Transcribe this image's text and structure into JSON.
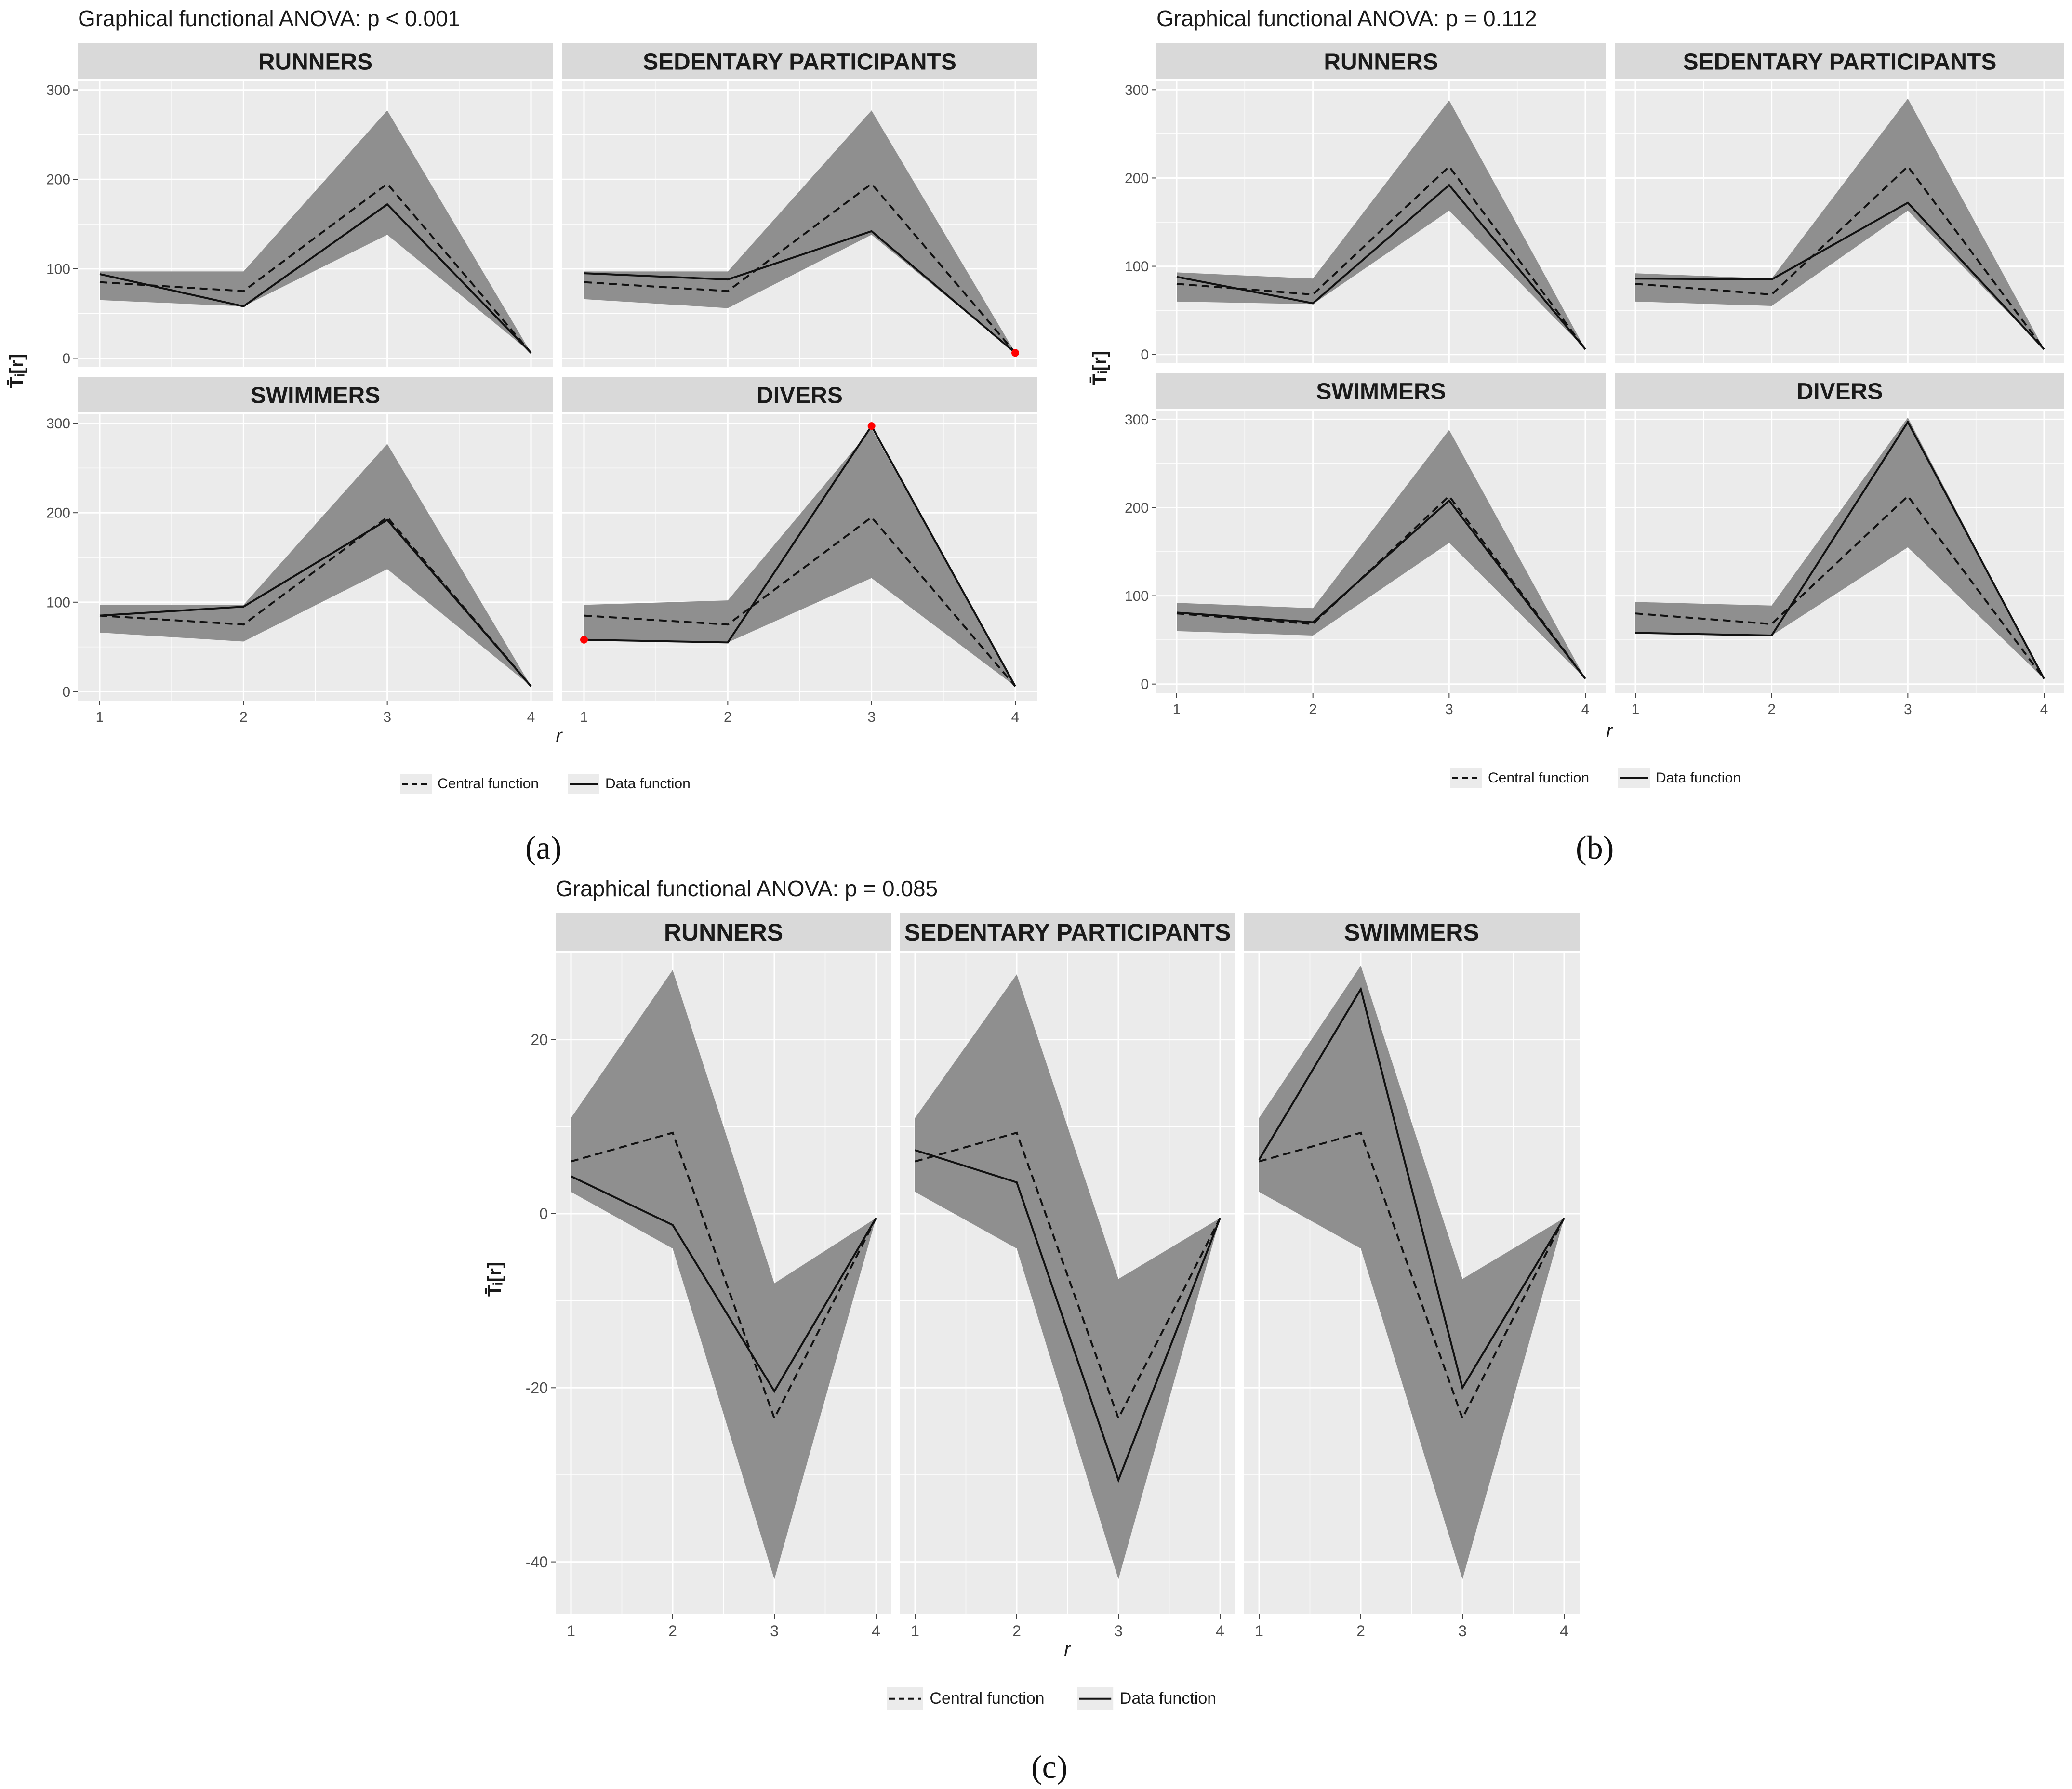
{
  "figures": [
    {
      "id": "a",
      "label": "(a)",
      "title": "Graphical functional ANOVA: p < 0.001",
      "ylabel": "T̄ᵢ[r]",
      "xlabel": "r",
      "legend": {
        "central": "Central function",
        "data": "Data function"
      }
    },
    {
      "id": "b",
      "label": "(b)",
      "title": "Graphical functional ANOVA: p = 0.112",
      "ylabel": "T̄ᵢ[r]",
      "xlabel": "r",
      "legend": {
        "central": "Central function",
        "data": "Data function"
      }
    },
    {
      "id": "c",
      "label": "(c)",
      "title": "Graphical functional ANOVA: p = 0.085",
      "ylabel": "T̄ᵢ[r]",
      "xlabel": "r",
      "legend": {
        "central": "Central function",
        "data": "Data function"
      }
    }
  ],
  "chart_data": [
    {
      "figure": "a",
      "type": "line",
      "title": "Graphical functional ANOVA: p < 0.001",
      "xlabel": "r",
      "ylabel": "T̄ᵢ[r]",
      "x": [
        1,
        2,
        3,
        4
      ],
      "xticks": [
        "1",
        "2",
        "3",
        "4"
      ],
      "yticks": [
        "0",
        "100",
        "200",
        "300"
      ],
      "ylim": [
        -10,
        310
      ],
      "colors": {
        "band": "#8f8f8f",
        "panel_bg": "#ebebeb",
        "strip_bg": "#d9d9d9",
        "outlier": "#ff0000"
      },
      "panels": [
        {
          "name": "RUNNERS",
          "band_low": [
            65,
            58,
            138,
            6
          ],
          "band_high": [
            97,
            97,
            277,
            6
          ],
          "central": [
            85,
            75,
            195,
            6
          ],
          "data": [
            94,
            58,
            172,
            6
          ],
          "outliers": []
        },
        {
          "name": "SEDENTARY PARTICIPANTS",
          "band_low": [
            66,
            56,
            138,
            6
          ],
          "band_high": [
            97,
            97,
            277,
            6
          ],
          "central": [
            85,
            75,
            195,
            6
          ],
          "data": [
            95,
            88,
            142,
            6
          ],
          "outliers": [
            [
              4,
              6
            ]
          ]
        },
        {
          "name": "SWIMMERS",
          "band_low": [
            66,
            56,
            137,
            6
          ],
          "band_high": [
            97,
            97,
            277,
            6
          ],
          "central": [
            85,
            75,
            195,
            6
          ],
          "data": [
            85,
            95,
            192,
            6
          ],
          "outliers": []
        },
        {
          "name": "DIVERS",
          "band_low": [
            58,
            55,
            127,
            6
          ],
          "band_high": [
            97,
            102,
            294,
            6
          ],
          "central": [
            85,
            75,
            195,
            6
          ],
          "data": [
            58,
            55,
            297,
            6
          ],
          "outliers": [
            [
              1,
              58
            ],
            [
              3,
              297
            ]
          ]
        }
      ]
    },
    {
      "figure": "b",
      "type": "line",
      "title": "Graphical functional ANOVA: p = 0.112",
      "xlabel": "r",
      "ylabel": "T̄ᵢ[r]",
      "x": [
        1,
        2,
        3,
        4
      ],
      "xticks": [
        "1",
        "2",
        "3",
        "4"
      ],
      "yticks": [
        "0",
        "100",
        "200",
        "300"
      ],
      "ylim": [
        -10,
        310
      ],
      "colors": {
        "band": "#8f8f8f",
        "panel_bg": "#ebebeb",
        "strip_bg": "#d9d9d9",
        "outlier": "#ff0000"
      },
      "panels": [
        {
          "name": "RUNNERS",
          "band_low": [
            60,
            57,
            163,
            6
          ],
          "band_high": [
            93,
            86,
            288,
            6
          ],
          "central": [
            80,
            68,
            213,
            6
          ],
          "data": [
            88,
            58,
            192,
            6
          ],
          "outliers": []
        },
        {
          "name": "SEDENTARY PARTICIPANTS",
          "band_low": [
            60,
            55,
            163,
            6
          ],
          "band_high": [
            92,
            86,
            290,
            6
          ],
          "central": [
            80,
            68,
            213,
            6
          ],
          "data": [
            86,
            85,
            172,
            6
          ],
          "outliers": []
        },
        {
          "name": "SWIMMERS",
          "band_low": [
            60,
            55,
            160,
            6
          ],
          "band_high": [
            92,
            86,
            288,
            6
          ],
          "central": [
            80,
            68,
            213,
            6
          ],
          "data": [
            81,
            70,
            208,
            6
          ],
          "outliers": []
        },
        {
          "name": "DIVERS",
          "band_low": [
            58,
            55,
            155,
            6
          ],
          "band_high": [
            93,
            89,
            302,
            6
          ],
          "central": [
            80,
            68,
            213,
            6
          ],
          "data": [
            58,
            55,
            297,
            6
          ],
          "outliers": []
        }
      ]
    },
    {
      "figure": "c",
      "type": "line",
      "title": "Graphical functional ANOVA: p = 0.085",
      "xlabel": "r",
      "ylabel": "T̄ᵢ[r]",
      "x": [
        1,
        2,
        3,
        4
      ],
      "xticks": [
        "1",
        "2",
        "3",
        "4"
      ],
      "yticks": [
        "-40",
        "-20",
        "0",
        "20"
      ],
      "ylim": [
        -46,
        30
      ],
      "colors": {
        "band": "#8f8f8f",
        "panel_bg": "#ebebeb",
        "strip_bg": "#d9d9d9",
        "outlier": "#ff0000"
      },
      "panels": [
        {
          "name": "RUNNERS",
          "band_low": [
            2.5,
            -4,
            -42,
            -0.5
          ],
          "band_high": [
            11,
            28,
            -8,
            -0.5
          ],
          "central": [
            6,
            9.3,
            -23.5,
            -0.5
          ],
          "data": [
            4.3,
            -1.3,
            -20.4,
            -0.5
          ],
          "outliers": []
        },
        {
          "name": "SEDENTARY PARTICIPANTS",
          "band_low": [
            2.5,
            -4,
            -42,
            -0.5
          ],
          "band_high": [
            11,
            27.5,
            -7.5,
            -0.5
          ],
          "central": [
            6,
            9.3,
            -23.5,
            -0.5
          ],
          "data": [
            7.3,
            3.6,
            -30.6,
            -0.5
          ],
          "outliers": []
        },
        {
          "name": "SWIMMERS",
          "band_low": [
            2.5,
            -4,
            -42,
            -0.5
          ],
          "band_high": [
            11,
            28.5,
            -7.5,
            -0.5
          ],
          "central": [
            6,
            9.3,
            -23.5,
            -0.5
          ],
          "data": [
            6.2,
            25.8,
            -20,
            -0.5
          ],
          "outliers": []
        }
      ]
    }
  ]
}
